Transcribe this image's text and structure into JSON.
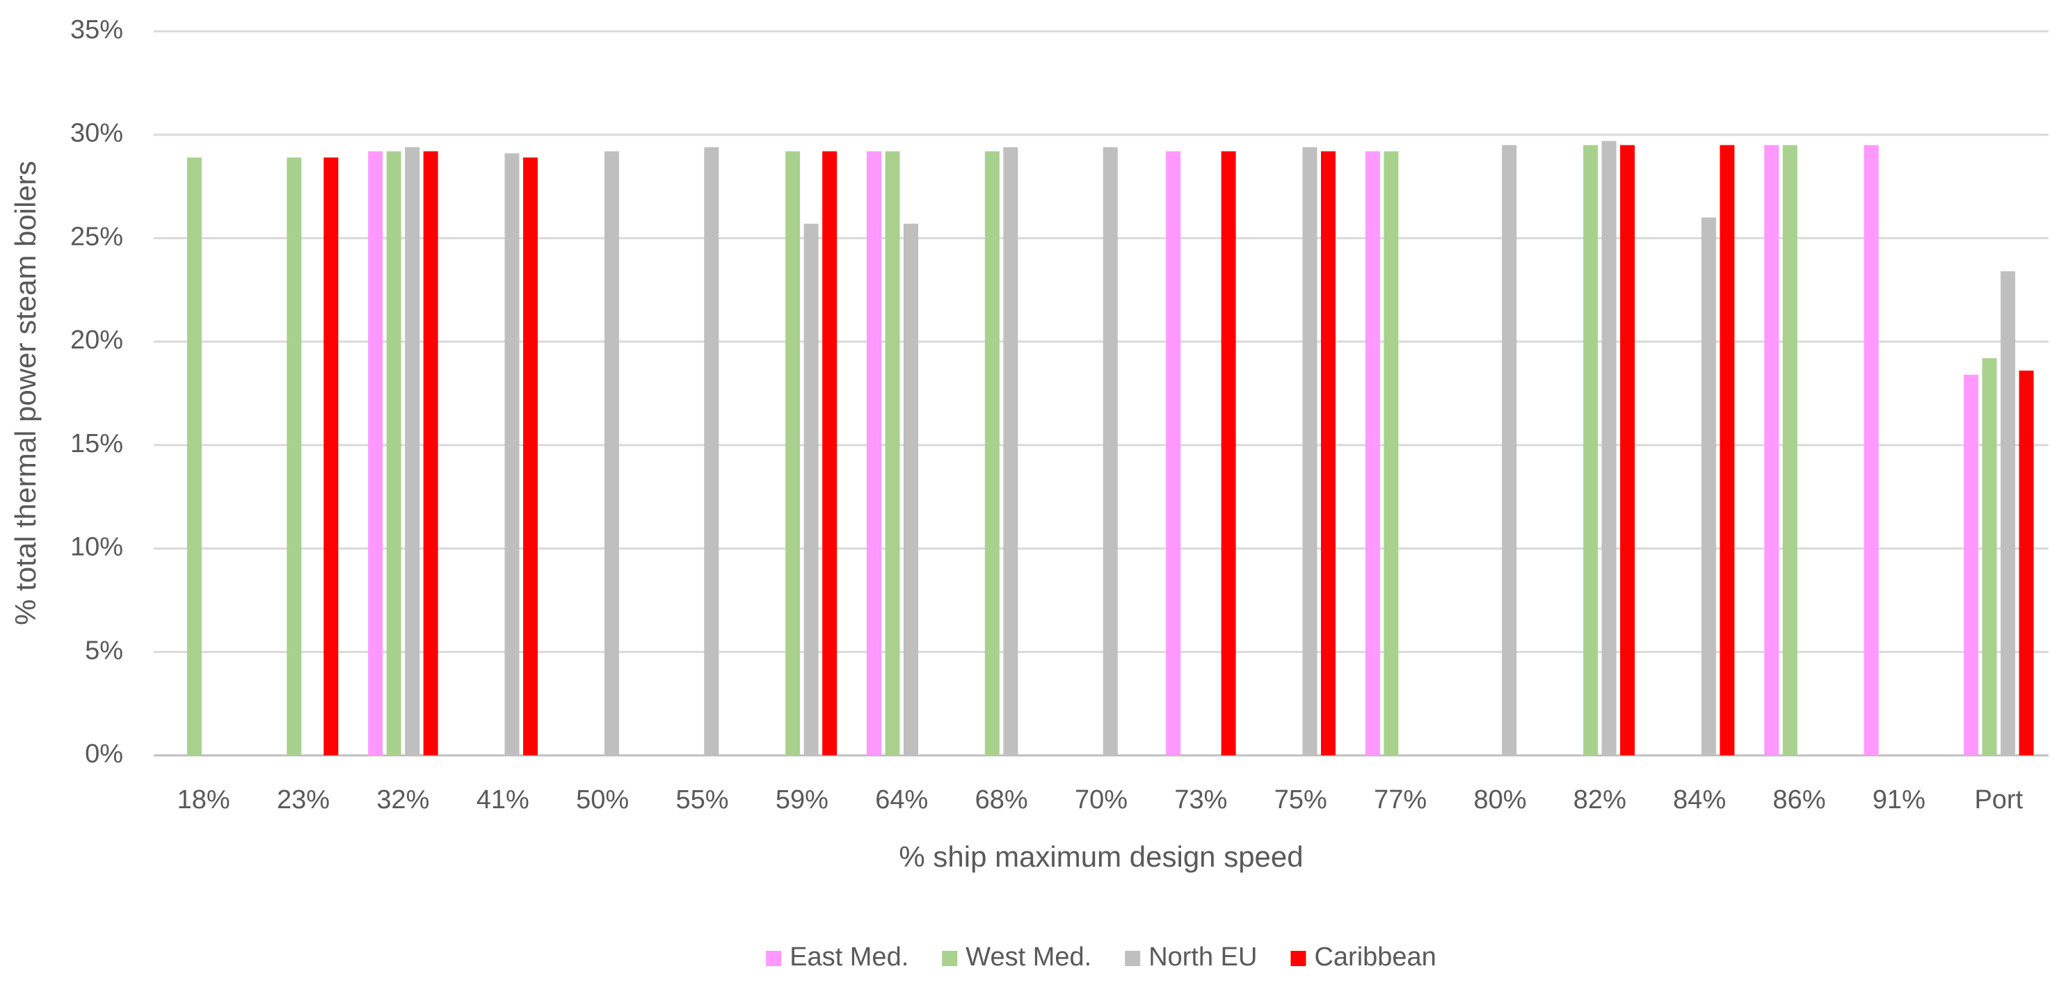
{
  "chart_data": {
    "type": "bar",
    "x_label": "% ship maximum design speed",
    "y_label": "% total thermal power steam boilers",
    "categories": [
      "18%",
      "23%",
      "32%",
      "41%",
      "50%",
      "55%",
      "59%",
      "64%",
      "68%",
      "70%",
      "73%",
      "75%",
      "77%",
      "80%",
      "82%",
      "84%",
      "86%",
      "91%",
      "Port"
    ],
    "series": [
      {
        "name": "East Med.",
        "color": "#ff99ff",
        "values": [
          null,
          null,
          29.2,
          null,
          null,
          null,
          null,
          29.2,
          null,
          null,
          29.2,
          null,
          29.2,
          null,
          null,
          null,
          29.5,
          29.5,
          18.4
        ]
      },
      {
        "name": "West Med.",
        "color": "#a9d18e",
        "values": [
          28.9,
          28.9,
          29.2,
          null,
          null,
          null,
          29.2,
          29.2,
          29.2,
          null,
          null,
          null,
          29.2,
          null,
          29.5,
          null,
          29.5,
          null,
          19.2
        ]
      },
      {
        "name": "North EU",
        "color": "#bfbfbf",
        "values": [
          null,
          null,
          29.4,
          29.1,
          29.2,
          29.4,
          25.7,
          25.7,
          29.4,
          29.4,
          null,
          29.4,
          null,
          29.5,
          29.7,
          26.0,
          null,
          null,
          23.4
        ]
      },
      {
        "name": "Caribbean",
        "color": "#ff0000",
        "values": [
          null,
          28.9,
          29.2,
          28.9,
          null,
          null,
          29.2,
          null,
          null,
          null,
          29.2,
          29.2,
          null,
          null,
          29.5,
          29.5,
          null,
          null,
          18.6
        ]
      }
    ],
    "ylim": [
      0,
      35
    ],
    "yticks": [
      {
        "value": 0,
        "label": "0%"
      },
      {
        "value": 5,
        "label": "5%"
      },
      {
        "value": 10,
        "label": "10%"
      },
      {
        "value": 15,
        "label": "15%"
      },
      {
        "value": 20,
        "label": "20%"
      },
      {
        "value": 25,
        "label": "25%"
      },
      {
        "value": 30,
        "label": "30%"
      },
      {
        "value": 35,
        "label": "35%"
      }
    ],
    "grid": true,
    "legend": "bottom"
  }
}
